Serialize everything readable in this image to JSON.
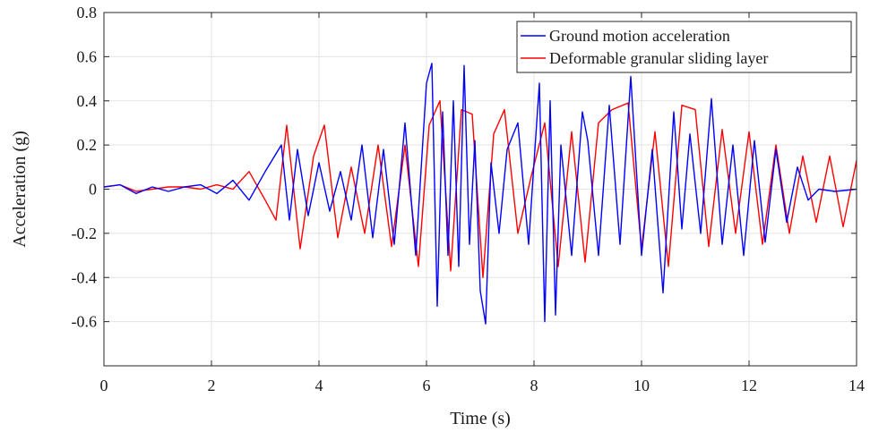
{
  "chart_data": {
    "type": "line",
    "title": "",
    "xlabel": "Time (s)",
    "ylabel": "Acceleration (g)",
    "xlim": [
      0,
      14
    ],
    "ylim": [
      -0.8,
      0.8
    ],
    "x_ticks": [
      0,
      2,
      4,
      6,
      8,
      10,
      12,
      14
    ],
    "y_ticks": [
      -0.6,
      -0.4,
      -0.2,
      0,
      0.2,
      0.4,
      0.6,
      0.8
    ],
    "x_tick_labels": [
      "0",
      "2",
      "4",
      "6",
      "8",
      "10",
      "12",
      "14"
    ],
    "y_tick_labels": [
      "-0.6",
      "-0.4",
      "-0.2",
      "0",
      "0.2",
      "0.4",
      "0.6",
      "0.8"
    ],
    "grid": true,
    "legend_position": "top-right",
    "series": [
      {
        "name": "Ground motion acceleration",
        "color": "#0000ff",
        "x": [
          0.0,
          0.3,
          0.6,
          0.9,
          1.2,
          1.5,
          1.8,
          2.1,
          2.4,
          2.7,
          3.0,
          3.3,
          3.45,
          3.6,
          3.8,
          4.0,
          4.2,
          4.4,
          4.6,
          4.8,
          5.0,
          5.2,
          5.4,
          5.6,
          5.8,
          6.0,
          6.1,
          6.2,
          6.3,
          6.4,
          6.5,
          6.6,
          6.7,
          6.8,
          6.9,
          7.0,
          7.1,
          7.2,
          7.35,
          7.5,
          7.7,
          7.9,
          8.0,
          8.1,
          8.2,
          8.3,
          8.4,
          8.5,
          8.7,
          8.9,
          9.0,
          9.2,
          9.4,
          9.6,
          9.8,
          10.0,
          10.2,
          10.4,
          10.6,
          10.75,
          10.9,
          11.1,
          11.3,
          11.5,
          11.7,
          11.9,
          12.1,
          12.3,
          12.5,
          12.7,
          12.9,
          13.1,
          13.3,
          13.6,
          14.0
        ],
        "y": [
          0.01,
          0.02,
          -0.02,
          0.01,
          -0.01,
          0.01,
          0.02,
          -0.02,
          0.04,
          -0.05,
          0.08,
          0.2,
          -0.14,
          0.18,
          -0.12,
          0.12,
          -0.1,
          0.08,
          -0.14,
          0.2,
          -0.22,
          0.18,
          -0.25,
          0.3,
          -0.3,
          0.48,
          0.57,
          -0.53,
          0.35,
          -0.3,
          0.4,
          -0.35,
          0.56,
          -0.25,
          0.22,
          -0.46,
          -0.61,
          0.12,
          -0.2,
          0.18,
          0.3,
          -0.25,
          0.12,
          0.48,
          -0.6,
          0.4,
          -0.57,
          0.2,
          -0.3,
          0.35,
          0.22,
          -0.3,
          0.38,
          -0.25,
          0.51,
          -0.3,
          0.18,
          -0.47,
          0.35,
          -0.18,
          0.25,
          -0.2,
          0.41,
          -0.25,
          0.2,
          -0.3,
          0.22,
          -0.24,
          0.18,
          -0.15,
          0.1,
          -0.05,
          0.0,
          -0.01,
          0.0
        ]
      },
      {
        "name": "Deformable granular sliding layer",
        "color": "#ff0000",
        "x": [
          0.0,
          0.3,
          0.6,
          0.9,
          1.2,
          1.5,
          1.8,
          2.1,
          2.4,
          2.7,
          3.0,
          3.2,
          3.4,
          3.65,
          3.9,
          4.1,
          4.35,
          4.6,
          4.85,
          5.1,
          5.35,
          5.6,
          5.85,
          6.05,
          6.25,
          6.45,
          6.65,
          6.85,
          7.05,
          7.25,
          7.45,
          7.7,
          7.95,
          8.2,
          8.45,
          8.7,
          8.95,
          9.2,
          9.45,
          9.75,
          10.0,
          10.25,
          10.5,
          10.75,
          11.0,
          11.25,
          11.5,
          11.75,
          12.0,
          12.25,
          12.5,
          12.75,
          13.0,
          13.25,
          13.5,
          13.75,
          14.0
        ],
        "y": [
          0.01,
          0.02,
          -0.01,
          0.0,
          0.01,
          0.01,
          0.0,
          0.02,
          0.0,
          0.08,
          -0.05,
          -0.14,
          0.29,
          -0.27,
          0.15,
          0.29,
          -0.22,
          0.1,
          -0.2,
          0.2,
          -0.26,
          0.2,
          -0.35,
          0.29,
          0.4,
          -0.37,
          0.36,
          0.34,
          -0.4,
          0.25,
          0.36,
          -0.2,
          0.06,
          0.3,
          -0.35,
          0.26,
          -0.33,
          0.3,
          0.36,
          0.39,
          -0.27,
          0.26,
          -0.35,
          0.38,
          0.36,
          -0.26,
          0.27,
          -0.2,
          0.26,
          -0.25,
          0.2,
          -0.2,
          0.15,
          -0.15,
          0.15,
          -0.17,
          0.13
        ]
      }
    ]
  }
}
